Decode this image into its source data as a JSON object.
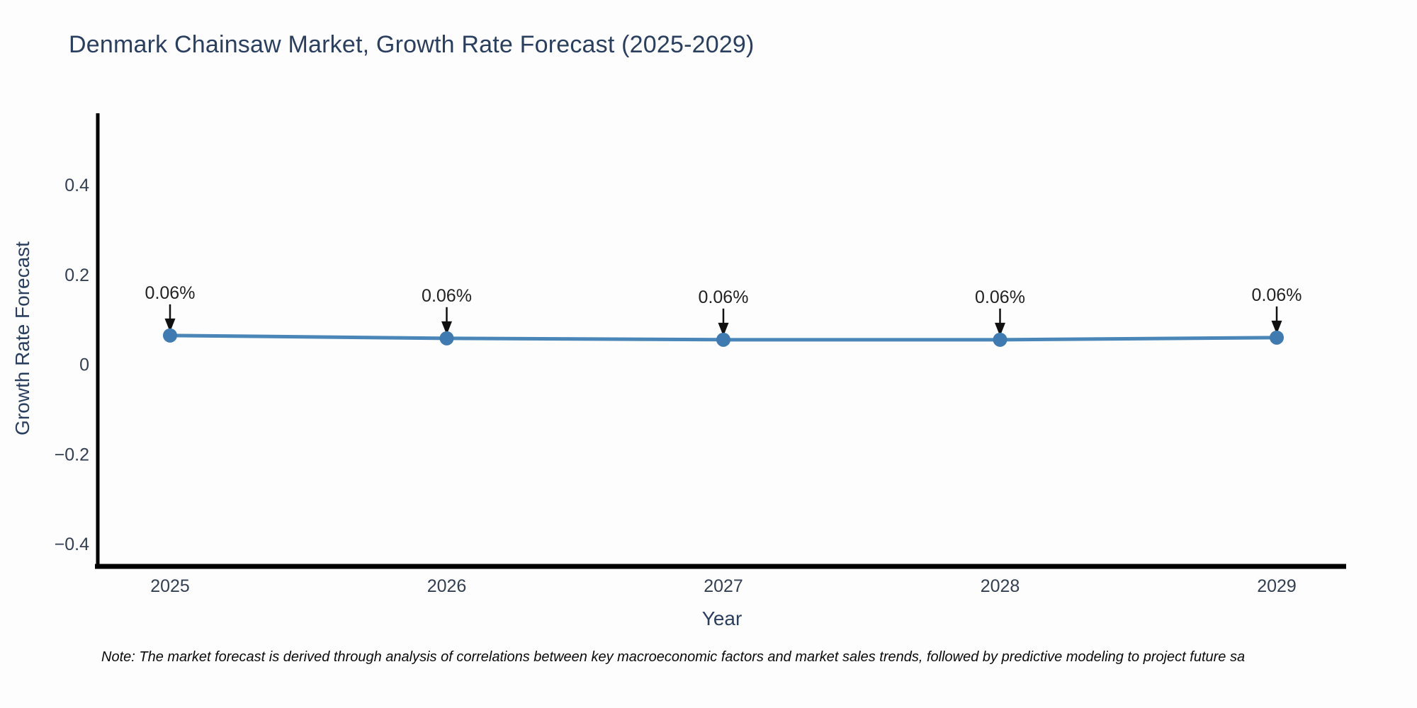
{
  "chart_data": {
    "type": "line",
    "title": "Denmark Chainsaw Market, Growth Rate Forecast (2025-2029)",
    "xlabel": "Year",
    "ylabel": "Growth Rate Forecast",
    "x": [
      2025,
      2026,
      2027,
      2028,
      2029
    ],
    "values": [
      0.06,
      0.06,
      0.06,
      0.06,
      0.06
    ],
    "point_labels": [
      "0.06%",
      "0.06%",
      "0.06%",
      "0.06%",
      "0.06%"
    ],
    "yticks": [
      "0.4",
      "0.2",
      "0",
      "−0.2",
      "−0.4"
    ],
    "ytick_values": [
      0.4,
      0.2,
      0,
      -0.2,
      -0.4
    ],
    "ylim": [
      -0.45,
      0.56
    ],
    "grid": false,
    "legend_position": "none",
    "colors": {
      "line": "#4a86b8",
      "marker": "#3f7ab0",
      "axis": "#000000",
      "title_text": "#2a3f5f",
      "axis_label_text": "#2a3f5f",
      "tick_text": "#333f52",
      "annotation_text": "#222222",
      "annotation_arrow": "#111111"
    }
  },
  "note": {
    "text": "Note: The market forecast is derived through analysis of correlations between key macroeconomic factors and market sales trends, followed by predictive modeling to project future sa"
  }
}
